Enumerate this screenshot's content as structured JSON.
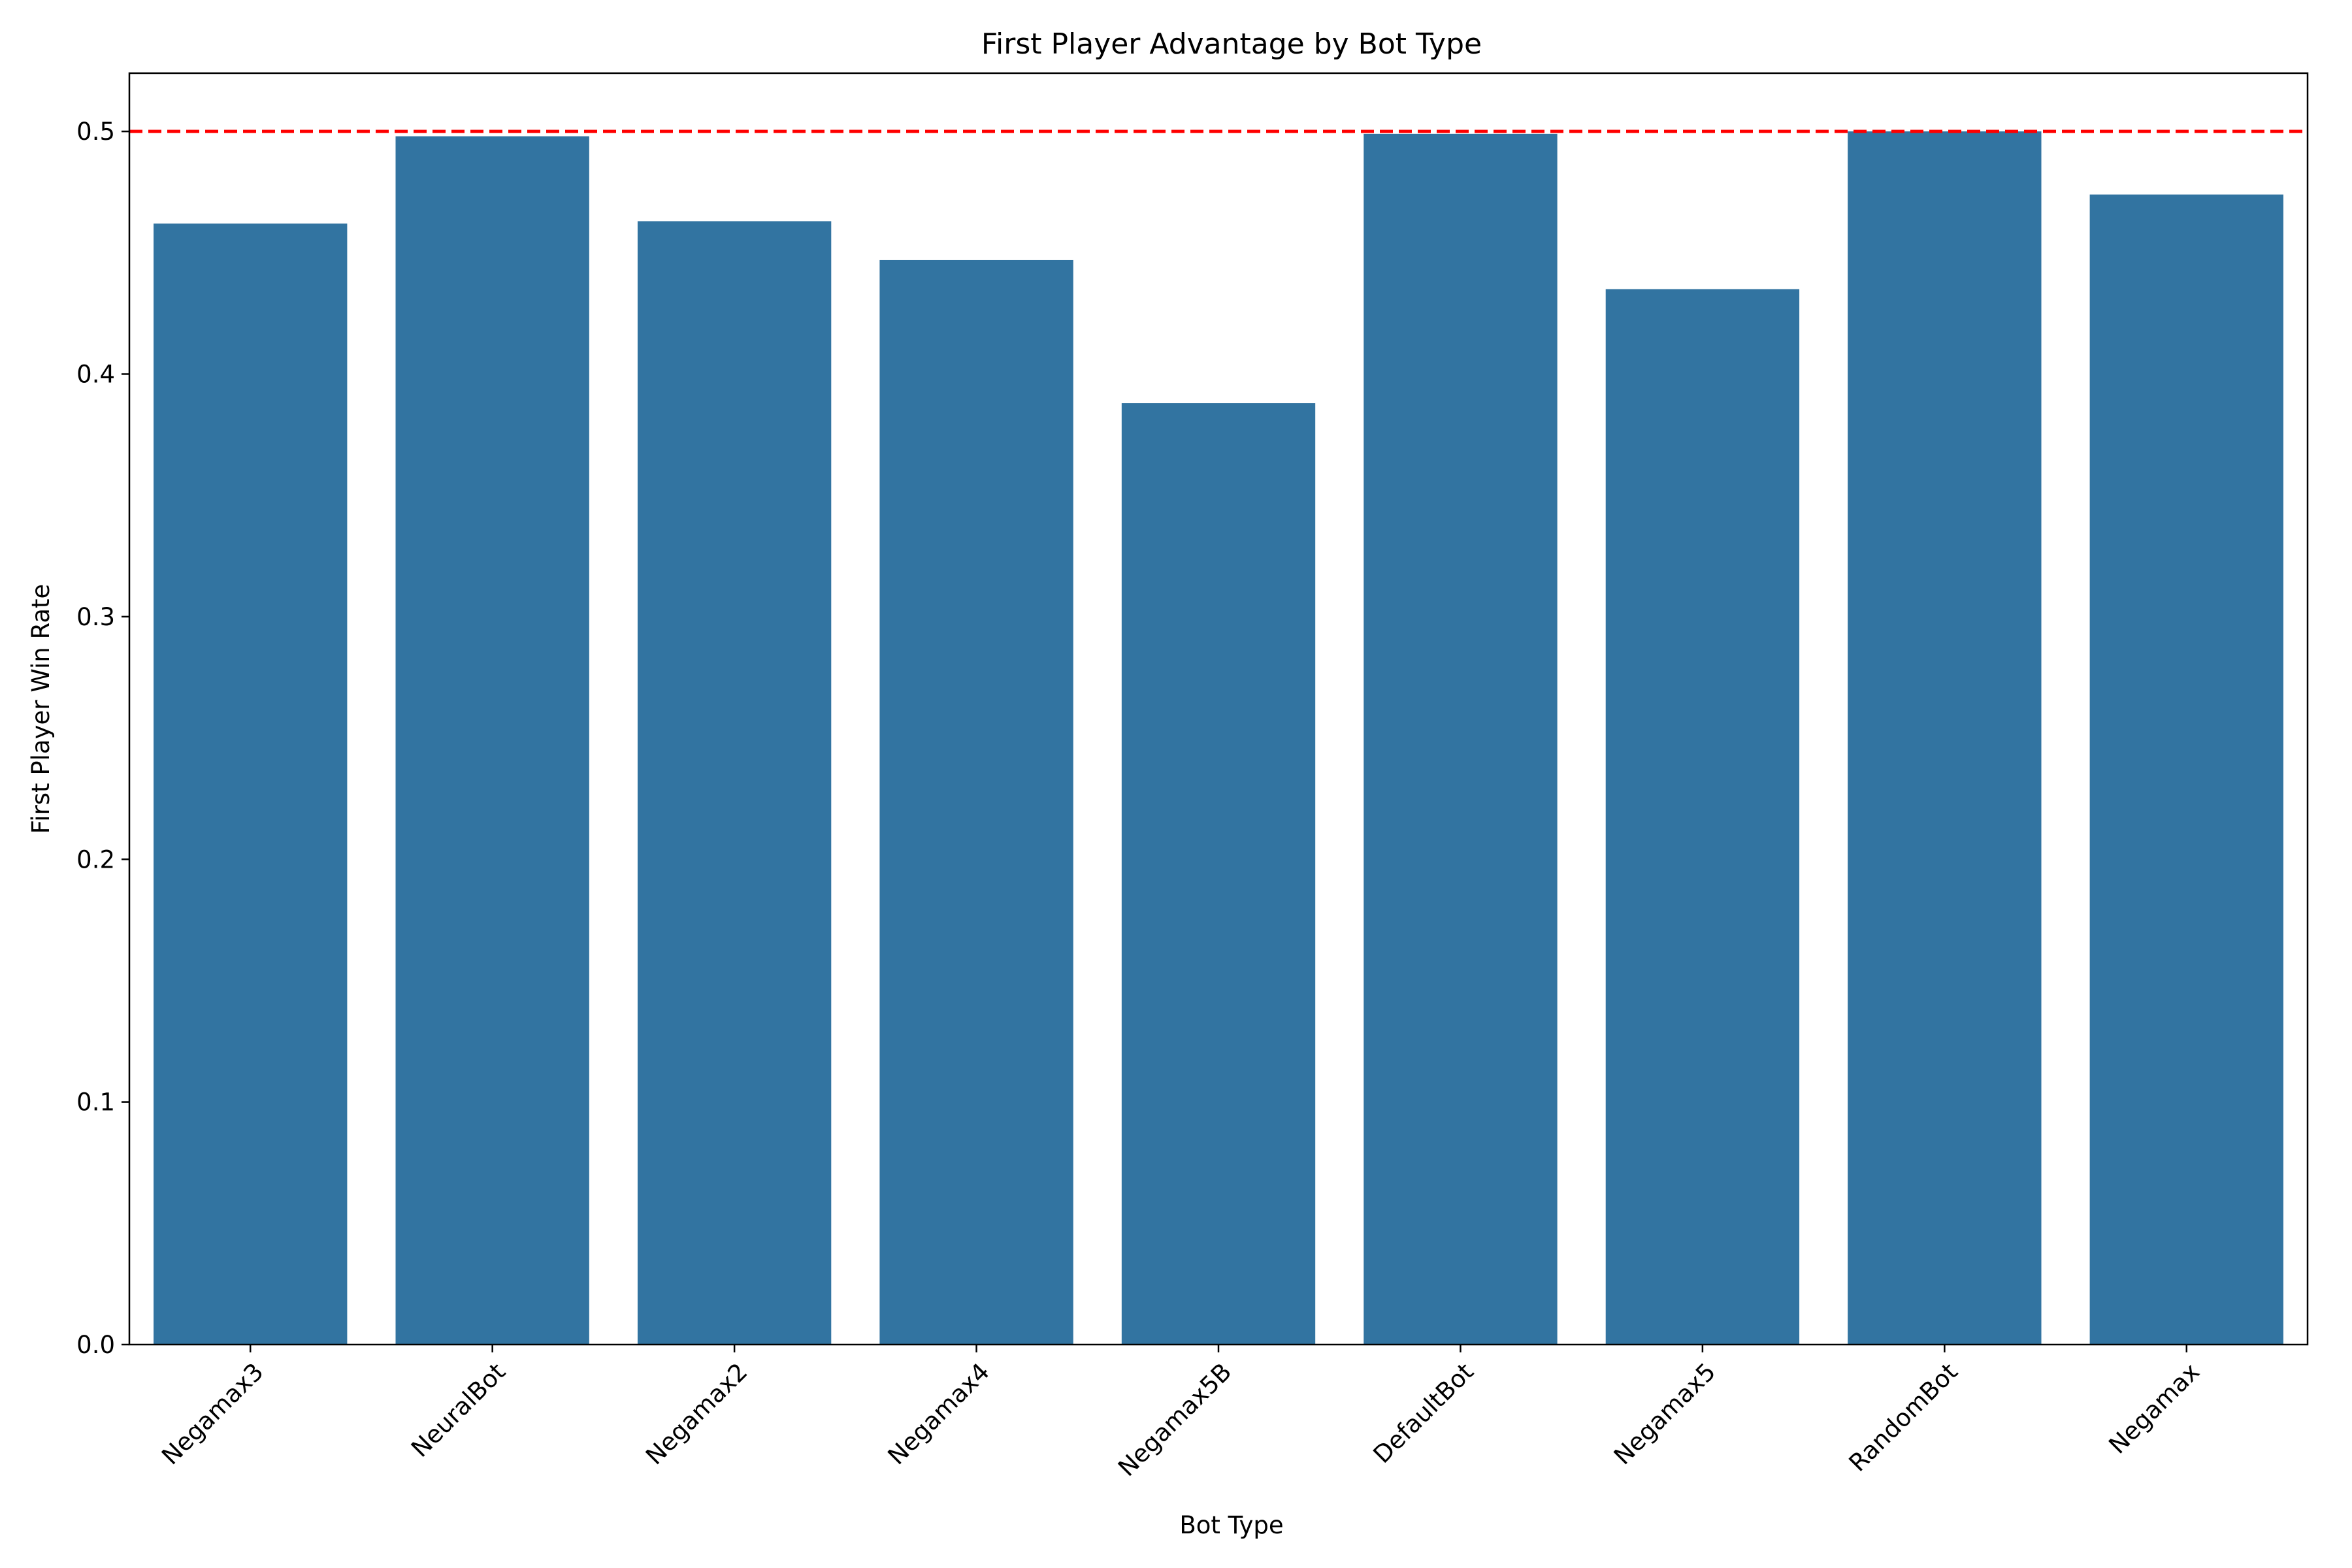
{
  "chart_data": {
    "type": "bar",
    "title": "First Player Advantage by Bot Type",
    "xlabel": "Bot Type",
    "ylabel": "First Player Win Rate",
    "categories": [
      "Negamax3",
      "NeuralBot",
      "Negamax2",
      "Negamax4",
      "Negamax5B",
      "DefaultBot",
      "Negamax5",
      "RandomBot",
      "Negamax"
    ],
    "values": [
      0.462,
      0.498,
      0.463,
      0.447,
      0.388,
      0.499,
      0.435,
      0.5,
      0.474
    ],
    "ylim": [
      0,
      0.524
    ],
    "yticks": [
      "0.0",
      "0.1",
      "0.2",
      "0.3",
      "0.4",
      "0.5"
    ],
    "reference_line": {
      "y": 0.5,
      "style": "dashed",
      "color": "#ff0000"
    },
    "bar_color": "#3274a1",
    "grid": false,
    "legend": "none"
  }
}
